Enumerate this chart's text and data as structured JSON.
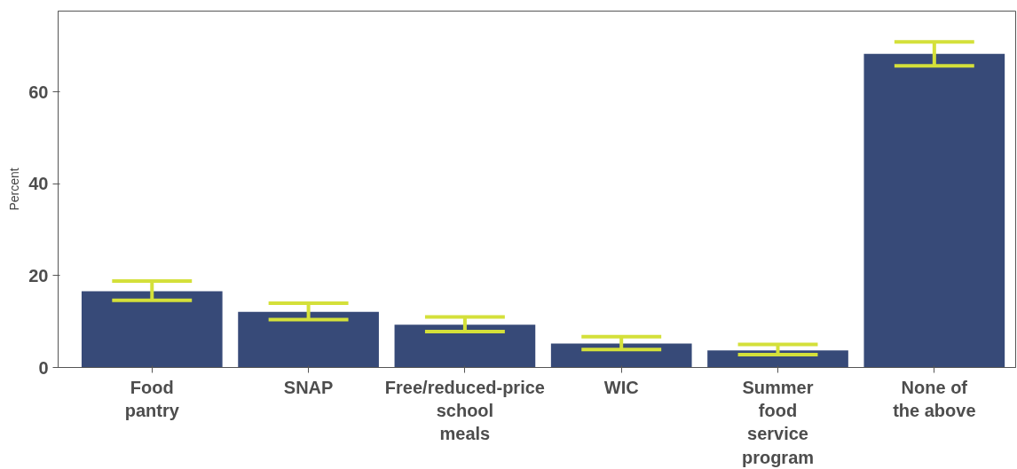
{
  "chart_data": {
    "type": "bar",
    "ylabel": "Percent",
    "categories": [
      "Food\npantry",
      "SNAP",
      "Free/reduced-price\nschool\nmeals",
      "WIC",
      "Summer\nfood\nservice\nprogram",
      "None of\nthe above"
    ],
    "values": [
      16.6,
      12.1,
      9.3,
      5.2,
      3.7,
      68.3
    ],
    "errors": [
      [
        14.6,
        18.8
      ],
      [
        10.4,
        14.0
      ],
      [
        7.8,
        11.0
      ],
      [
        3.9,
        6.7
      ],
      [
        2.8,
        5.0
      ],
      [
        65.7,
        70.9
      ]
    ],
    "color": "#374a78",
    "ylim": [
      0,
      77.6
    ],
    "yticks": [
      0,
      20,
      40,
      60
    ],
    "grid": false
  }
}
